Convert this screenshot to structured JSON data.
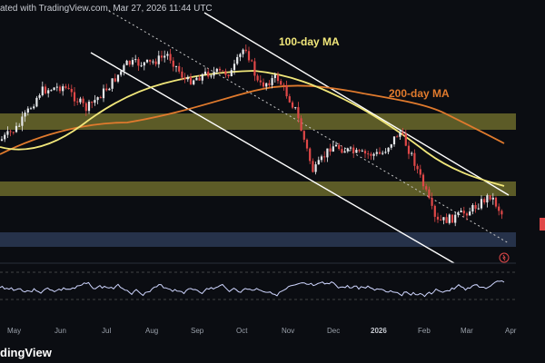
{
  "header": {
    "caption": "ated with TradingView.com, Mar 27, 2026 11:44 UTC"
  },
  "annotations": {
    "ma100": "100-day MA",
    "ma200": "200-day MA"
  },
  "x_axis_labels": [
    "May",
    "Jun",
    "Jul",
    "Aug",
    "Sep",
    "Oct",
    "Nov",
    "Dec",
    "2026",
    "Feb",
    "Mar",
    "Apr"
  ],
  "footer": {
    "brand": "dingView"
  },
  "colors": {
    "background": "#0b0d12",
    "ma100": "#f1e77a",
    "ma200": "#e07a2d",
    "zone_olive": "#6b6a2b",
    "zone_blue": "#2b3a55",
    "candle_up": "#e8eaed",
    "candle_down": "#e04848",
    "rsi": "#cfd6ff"
  }
}
